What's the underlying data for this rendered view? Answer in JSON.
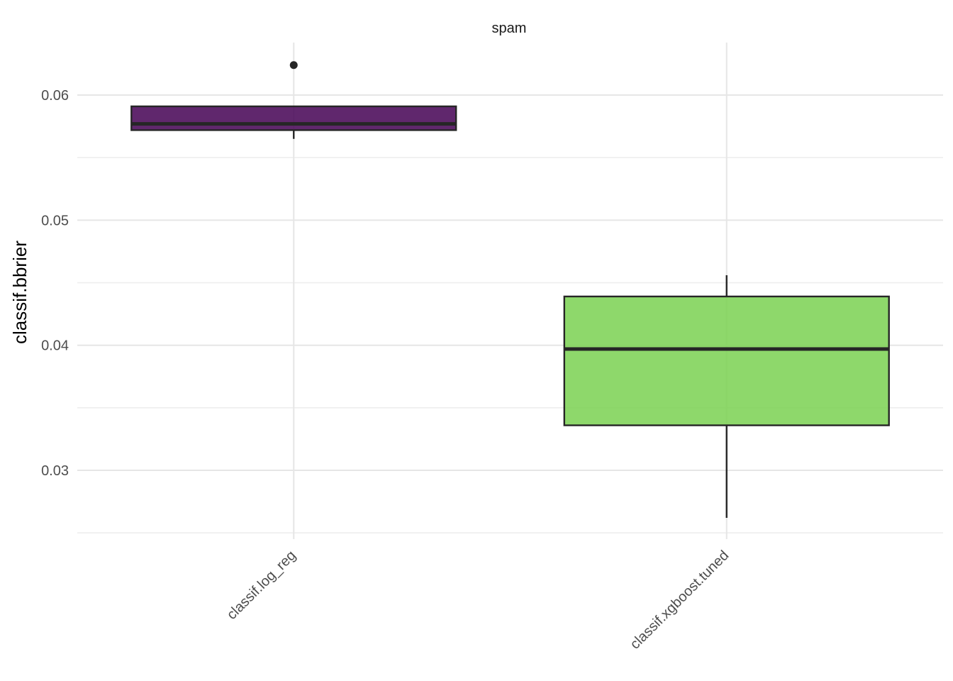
{
  "chart_data": {
    "type": "boxplot",
    "facet": "spam",
    "xlabel": "",
    "ylabel": "classif.bbrier",
    "ylim": [
      0.0245,
      0.0642
    ],
    "yticks": [
      0.03,
      0.04,
      0.05,
      0.06
    ],
    "ytick_labels": [
      "0.03",
      "0.04",
      "0.05",
      "0.06"
    ],
    "grid": true,
    "categories": [
      "classif.log_reg",
      "classif.xgboost.tuned"
    ],
    "boxes": [
      {
        "category": "classif.log_reg",
        "whisker_low": 0.0565,
        "q1": 0.0572,
        "median": 0.0577,
        "q3": 0.0591,
        "whisker_high": 0.0591,
        "outliers": [
          0.0624
        ],
        "color": "#440154"
      },
      {
        "category": "classif.xgboost.tuned",
        "whisker_low": 0.0262,
        "q1": 0.0336,
        "median": 0.0397,
        "q3": 0.0439,
        "whisker_high": 0.0456,
        "outliers": [],
        "color": "#7AD151"
      }
    ]
  }
}
